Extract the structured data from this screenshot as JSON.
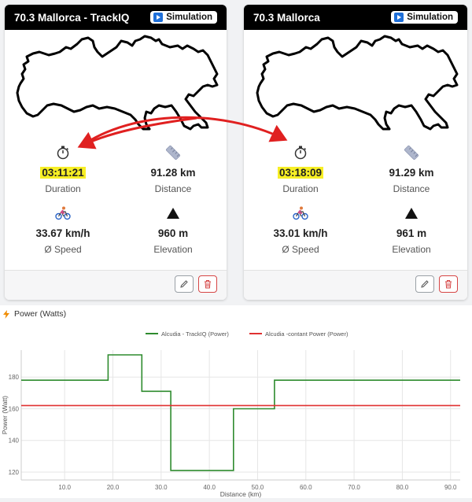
{
  "cards": [
    {
      "title": "70.3 Mallorca - TrackIQ",
      "badge": "Simulation",
      "duration": "03:11:21",
      "duration_label": "Duration",
      "distance": "91.28 km",
      "distance_label": "Distance",
      "speed": "33.67 km/h",
      "speed_label": "Ø Speed",
      "elevation": "960 m",
      "elevation_label": "Elevation"
    },
    {
      "title": "70.3 Mallorca",
      "badge": "Simulation",
      "duration": "03:18:09",
      "duration_label": "Duration",
      "distance": "91.29 km",
      "distance_label": "Distance",
      "speed": "33.01 km/h",
      "speed_label": "Ø Speed",
      "elevation": "961 m",
      "elevation_label": "Elevation"
    }
  ],
  "icons": {
    "duration": "stopwatch-icon",
    "distance": "ruler-icon",
    "speed": "cyclist-icon",
    "elevation": "mountain-icon",
    "edit": "pencil-icon",
    "delete": "trash-icon",
    "badge": "play-icon",
    "chart": "lightning-icon"
  },
  "colors": {
    "highlight": "#f7ef25",
    "series_trackiq": "#2e8b2e",
    "series_constant": "#e03131",
    "annotation_arrow": "#e02020",
    "badge_icon": "#1e6fd9",
    "delete_border": "#d64545"
  },
  "chart_section": {
    "title": "Power (Watts)"
  },
  "chart_data": {
    "type": "line",
    "title": "Power (Watts)",
    "xlabel": "Distance (km)",
    "ylabel": "Power (Watt)",
    "xlim": [
      1,
      92
    ],
    "ylim": [
      115,
      197
    ],
    "xticks": [
      10.0,
      20.0,
      30.0,
      40.0,
      50.0,
      60.0,
      70.0,
      80.0,
      90.0
    ],
    "yticks": [
      120,
      140,
      160,
      180
    ],
    "grid": true,
    "legend_position": "top-center",
    "series": [
      {
        "name": "Alcudia - TrackIQ (Power)",
        "color": "#2e8b2e",
        "step": true,
        "points": [
          [
            1,
            178
          ],
          [
            19,
            178
          ],
          [
            19,
            194
          ],
          [
            26,
            194
          ],
          [
            26,
            171
          ],
          [
            32,
            171
          ],
          [
            32,
            121
          ],
          [
            45,
            121
          ],
          [
            45,
            160
          ],
          [
            53.5,
            160
          ],
          [
            53.5,
            178
          ],
          [
            92,
            178
          ]
        ]
      },
      {
        "name": "Alcudia -contant Power (Power)",
        "color": "#e03131",
        "step": false,
        "points": [
          [
            1,
            162
          ],
          [
            92,
            162
          ]
        ]
      }
    ]
  }
}
